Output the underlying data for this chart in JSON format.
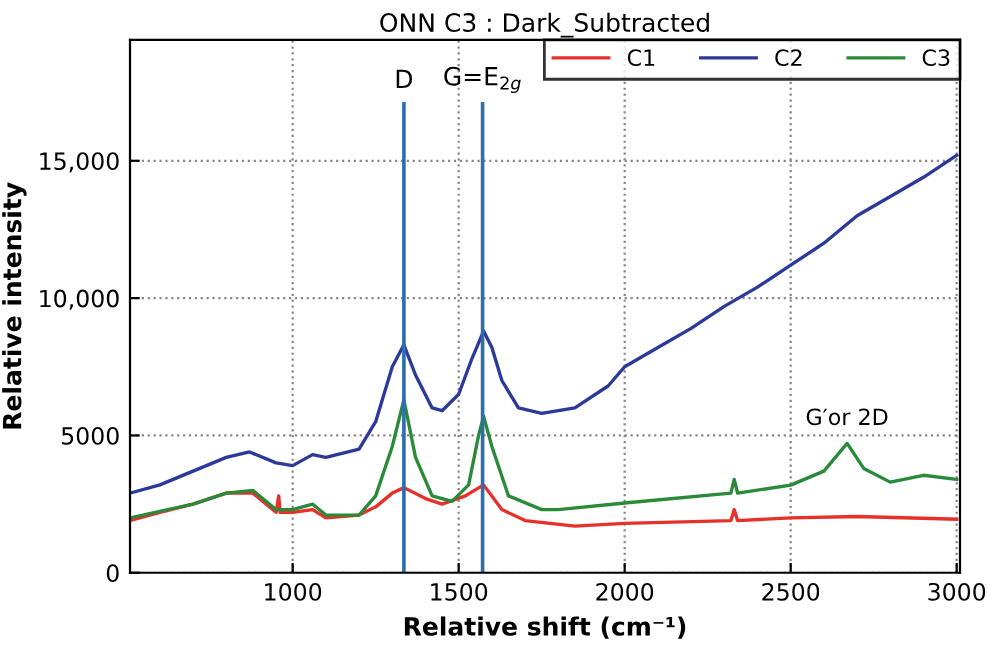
{
  "chart_data": {
    "type": "line",
    "title": "ONN C3 : Dark_Subtracted",
    "xlabel": "Relative shift (cm⁻¹)",
    "ylabel": "Relative intensity",
    "xlim": [
      510,
      3010
    ],
    "ylim": [
      0,
      19400
    ],
    "xticks": [
      1000,
      1500,
      2000,
      2500,
      3000
    ],
    "yticks": [
      0,
      {
        "value": 5000,
        "label": "5000"
      },
      {
        "value": 10000,
        "label": "10,000"
      },
      {
        "value": 15000,
        "label": "15,000"
      }
    ],
    "grid": true,
    "legend": "top right",
    "line_style": "solid",
    "ref_lines": [
      {
        "axis": "x",
        "value": 1335,
        "label": "D",
        "color": "#2e6db0"
      },
      {
        "axis": "x",
        "value": 1572,
        "label": "G=E$_{2g}$",
        "color": "#2e6db0"
      }
    ],
    "annotations": [
      {
        "text": "G′or 2D",
        "x": 2670,
        "y": 4710
      }
    ],
    "series": [
      {
        "name": "C1",
        "color": "#e8302a",
        "x": [
          510,
          600,
          700,
          800,
          880,
          950,
          958,
          962,
          1000,
          1060,
          1100,
          1200,
          1250,
          1300,
          1335,
          1400,
          1450,
          1520,
          1575,
          1630,
          1700,
          1850,
          2000,
          2320,
          2330,
          2340,
          2500,
          2700,
          3000
        ],
        "values": [
          1900,
          2200,
          2500,
          2900,
          2900,
          2200,
          2800,
          2200,
          2200,
          2300,
          2000,
          2100,
          2400,
          2900,
          3100,
          2700,
          2500,
          2800,
          3200,
          2300,
          1900,
          1700,
          1800,
          1900,
          2300,
          1900,
          2000,
          2050,
          1950
        ]
      },
      {
        "name": "C2",
        "color": "#2b3a99",
        "x": [
          510,
          600,
          700,
          800,
          870,
          950,
          1000,
          1060,
          1100,
          1200,
          1250,
          1300,
          1335,
          1370,
          1420,
          1450,
          1500,
          1540,
          1575,
          1600,
          1630,
          1680,
          1750,
          1850,
          1950,
          2000,
          2100,
          2200,
          2300,
          2400,
          2500,
          2600,
          2700,
          2800,
          2900,
          3000
        ],
        "values": [
          2900,
          3200,
          3700,
          4200,
          4400,
          4000,
          3900,
          4300,
          4200,
          4500,
          5500,
          7500,
          8300,
          7200,
          6000,
          5900,
          6500,
          7800,
          8800,
          8200,
          7000,
          6000,
          5800,
          6000,
          6800,
          7500,
          8200,
          8900,
          9700,
          10400,
          11200,
          12000,
          13000,
          13700,
          14400,
          15200
        ]
      },
      {
        "name": "C3",
        "color": "#2a8a3a",
        "x": [
          510,
          700,
          800,
          880,
          950,
          1000,
          1060,
          1100,
          1200,
          1250,
          1300,
          1335,
          1370,
          1420,
          1480,
          1530,
          1560,
          1575,
          1600,
          1650,
          1750,
          1800,
          2000,
          2320,
          2330,
          2340,
          2500,
          2600,
          2670,
          2720,
          2800,
          2900,
          3000
        ],
        "values": [
          2000,
          2500,
          2900,
          3000,
          2300,
          2300,
          2500,
          2100,
          2100,
          2800,
          4600,
          6300,
          4200,
          2800,
          2600,
          3200,
          5000,
          5700,
          4600,
          2800,
          2300,
          2300,
          2540,
          2900,
          3400,
          2900,
          3190,
          3700,
          4710,
          3800,
          3300,
          3550,
          3400
        ]
      }
    ]
  }
}
